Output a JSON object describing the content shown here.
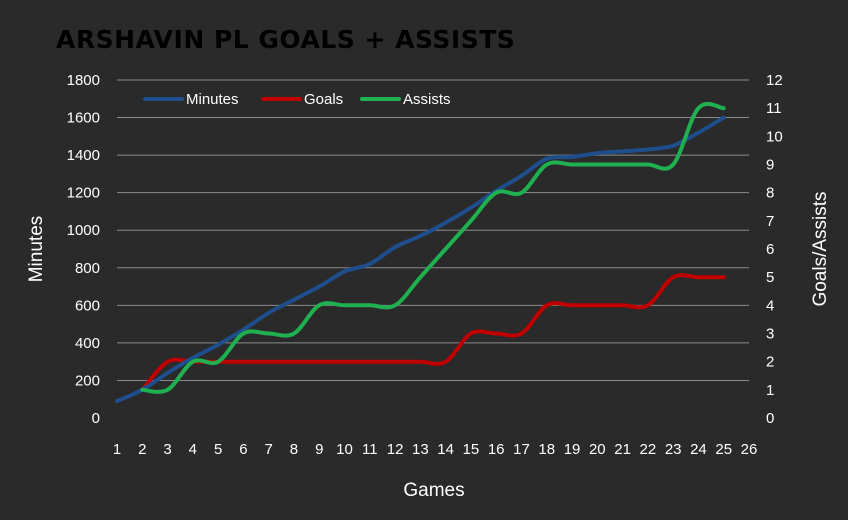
{
  "chart_data": {
    "type": "line",
    "title": "ARSHAVIN PL GOALS + ASSISTS",
    "xlabel": "Games",
    "ylabel_left": "Minutes",
    "ylabel_right": "Goals/Assists",
    "x_ticks": [
      1,
      2,
      3,
      4,
      5,
      6,
      7,
      8,
      9,
      10,
      11,
      12,
      13,
      14,
      15,
      16,
      17,
      18,
      19,
      20,
      21,
      22,
      23,
      24,
      25,
      26
    ],
    "xlim": [
      1,
      26
    ],
    "y_left_lim": [
      0,
      1800
    ],
    "y_left_ticks": [
      0,
      200,
      400,
      600,
      800,
      1000,
      1200,
      1400,
      1600,
      1800
    ],
    "y_right_lim": [
      0,
      12
    ],
    "y_right_ticks": [
      0,
      1,
      2,
      3,
      4,
      5,
      6,
      7,
      8,
      9,
      10,
      11,
      12
    ],
    "grid": true,
    "legend_position": "top-left",
    "series": [
      {
        "name": "Minutes",
        "axis": "left",
        "color": "#1f4e8c",
        "x": [
          1,
          2,
          3,
          4,
          5,
          6,
          7,
          8,
          9,
          10,
          11,
          12,
          13,
          14,
          15,
          16,
          17,
          18,
          19,
          20,
          21,
          22,
          23,
          24,
          25
        ],
        "values": [
          90,
          150,
          240,
          320,
          390,
          470,
          560,
          630,
          700,
          780,
          820,
          910,
          970,
          1040,
          1120,
          1210,
          1290,
          1380,
          1390,
          1410,
          1420,
          1430,
          1450,
          1520,
          1600
        ]
      },
      {
        "name": "Goals",
        "axis": "right",
        "color": "#c00000",
        "x": [
          2,
          3,
          4,
          5,
          6,
          7,
          8,
          9,
          10,
          11,
          12,
          13,
          14,
          15,
          16,
          17,
          18,
          19,
          20,
          21,
          22,
          23,
          24,
          25
        ],
        "values": [
          1,
          2,
          2,
          2,
          2,
          2,
          2,
          2,
          2,
          2,
          2,
          2,
          2,
          3,
          3,
          3,
          4,
          4,
          4,
          4,
          4,
          5,
          5,
          5
        ]
      },
      {
        "name": "Assists",
        "axis": "right",
        "color": "#1fb050",
        "x": [
          2,
          3,
          4,
          5,
          6,
          7,
          8,
          9,
          10,
          11,
          12,
          13,
          14,
          15,
          16,
          17,
          18,
          19,
          20,
          21,
          22,
          23,
          24,
          25
        ],
        "values": [
          1,
          1,
          2,
          2,
          3,
          3,
          3,
          4,
          4,
          4,
          4,
          5,
          6,
          7,
          8,
          8,
          9,
          9,
          9,
          9,
          9,
          9,
          11,
          11
        ]
      }
    ]
  }
}
